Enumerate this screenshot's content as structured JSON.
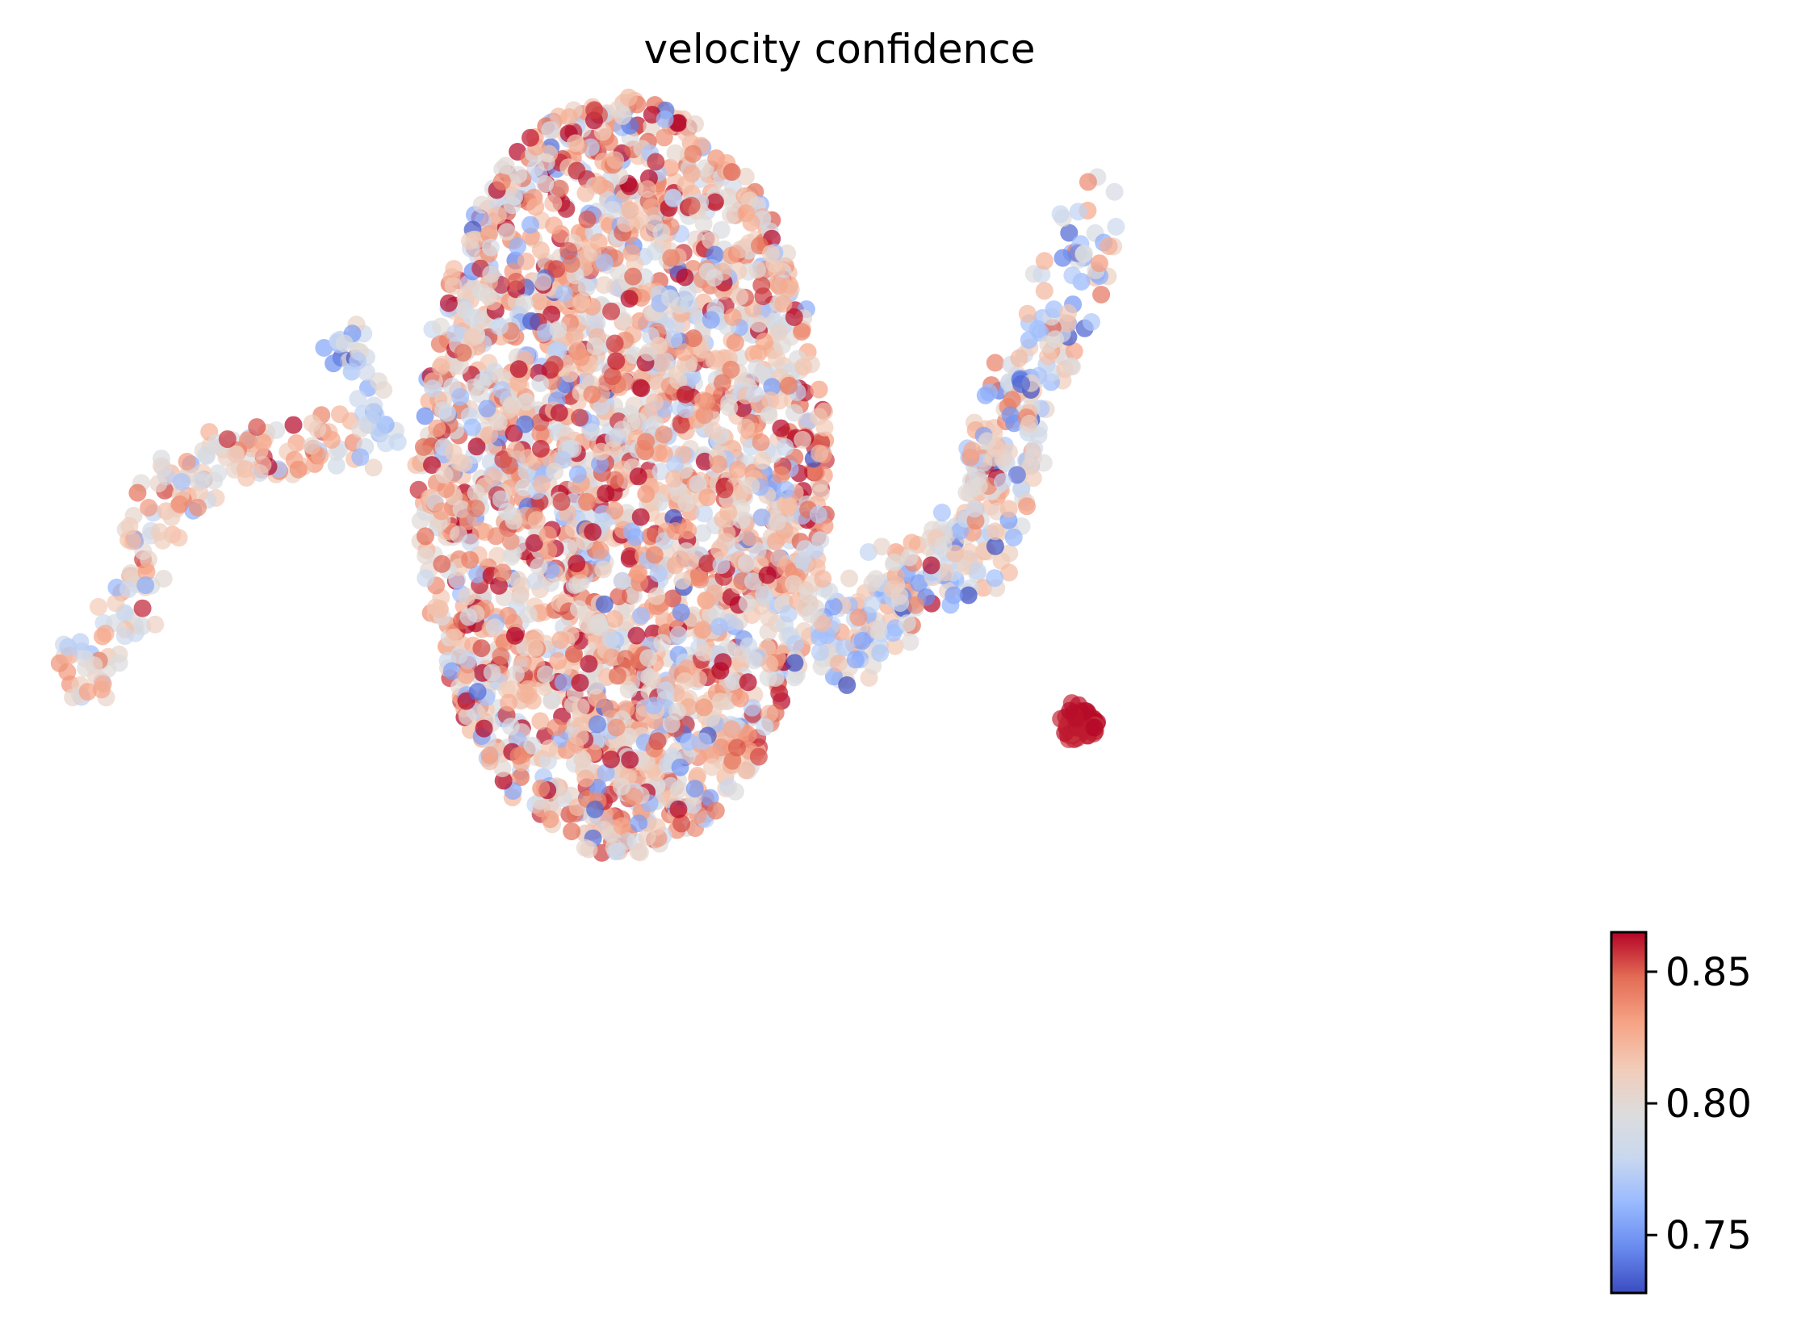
{
  "chart_data": {
    "type": "scatter",
    "title": "velocity confidence",
    "xlabel": "",
    "ylabel": "",
    "axes_visible": false,
    "grid": false,
    "legend": "none",
    "colormap": "coolwarm",
    "point_alpha": 0.7,
    "colorbar": {
      "placement": "right",
      "min": 0.728,
      "max": 0.865,
      "ticks": [
        0.75,
        0.8,
        0.85
      ],
      "tick_labels": [
        "0.75",
        "0.80",
        "0.85"
      ],
      "colors": [
        "#3b4cc0",
        "#688aef",
        "#99baff",
        "#c9d8ef",
        "#dddcdc",
        "#f2cbb7",
        "#f6a385",
        "#e36c55",
        "#b40426"
      ]
    },
    "clusters": [
      {
        "shape": "blob",
        "cx": 770,
        "cy": 590,
        "rx": 255,
        "ry": 470,
        "n": 2600,
        "mean": 0.815,
        "sd": 0.032
      },
      {
        "shape": "path",
        "points": [
          [
            100,
            840
          ],
          [
            165,
            740
          ],
          [
            200,
            610
          ],
          [
            300,
            560
          ],
          [
            450,
            545
          ]
        ],
        "width": 70,
        "n": 180,
        "mean": 0.812,
        "sd": 0.025
      },
      {
        "shape": "path",
        "points": [
          [
            420,
            420
          ],
          [
            460,
            480
          ],
          [
            470,
            560
          ]
        ],
        "width": 50,
        "n": 40,
        "mean": 0.775,
        "sd": 0.02
      },
      {
        "shape": "path",
        "points": [
          [
            1020,
            820
          ],
          [
            1100,
            760
          ],
          [
            1200,
            700
          ],
          [
            1240,
            600
          ],
          [
            1260,
            500
          ],
          [
            1310,
            420
          ],
          [
            1350,
            250
          ]
        ],
        "width": 90,
        "n": 330,
        "mean": 0.79,
        "sd": 0.03
      },
      {
        "shape": "path",
        "points": [
          [
            1000,
            740
          ],
          [
            1100,
            710
          ],
          [
            1210,
            640
          ],
          [
            1230,
            550
          ]
        ],
        "width": 60,
        "n": 70,
        "mean": 0.805,
        "sd": 0.025
      },
      {
        "shape": "blob",
        "cx": 1335,
        "cy": 895,
        "rx": 25,
        "ry": 25,
        "n": 50,
        "mean": 0.862,
        "sd": 0.003
      }
    ]
  }
}
